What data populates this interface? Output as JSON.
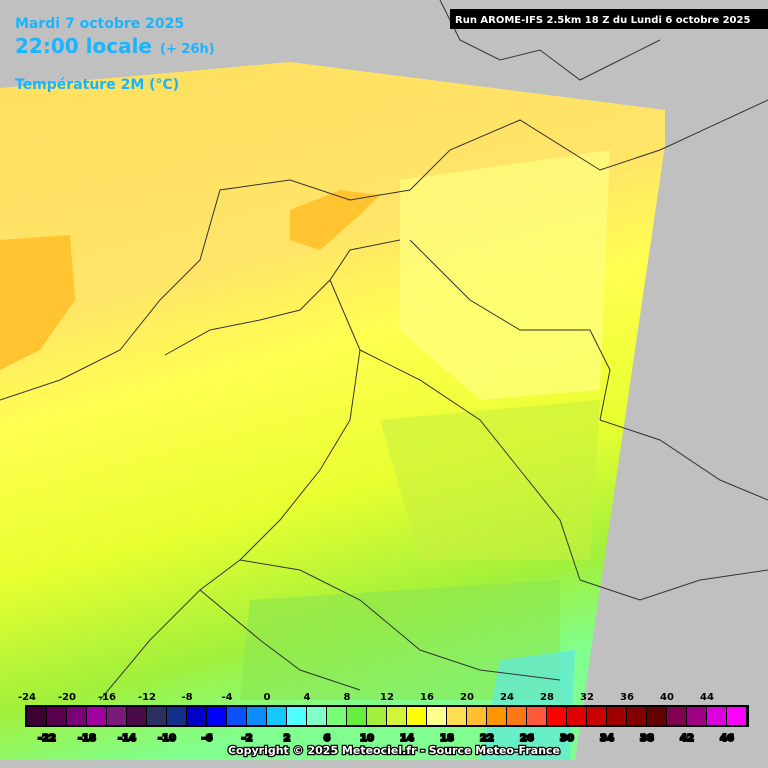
{
  "header": {
    "date": "Mardi 7 octobre 2025",
    "time": "22:00 locale",
    "lead": "(+ 26h)",
    "variable": "Température 2M (°C)",
    "run": "Run AROME-IFS 2.5km 18 Z du Lundi 6 octobre 2025"
  },
  "legend": {
    "values": [
      -24,
      -22,
      -20,
      -18,
      -16,
      -14,
      -12,
      -10,
      -8,
      -6,
      -4,
      -2,
      0,
      2,
      4,
      6,
      8,
      10,
      12,
      14,
      16,
      18,
      20,
      22,
      24,
      26,
      28,
      30,
      32,
      34,
      36,
      38,
      40,
      42,
      44,
      46
    ],
    "colors": [
      "#3c0032",
      "#5a0050",
      "#7a0078",
      "#a000a0",
      "#7a1a7a",
      "#4a0a4a",
      "#2a3060",
      "#12308a",
      "#0000c8",
      "#0000ff",
      "#0a50ff",
      "#0a8cff",
      "#14c8ff",
      "#50ffff",
      "#80ffc8",
      "#78ff78",
      "#64f03c",
      "#a0f03c",
      "#d2f53c",
      "#ffff00",
      "#ffff8c",
      "#ffdc50",
      "#ffbe32",
      "#ff9600",
      "#ff7814",
      "#ff5a3c",
      "#ff0000",
      "#e10000",
      "#c80000",
      "#a00000",
      "#820000",
      "#640000",
      "#820050",
      "#a00082",
      "#dc00dc",
      "#ff00ff"
    ]
  },
  "footer": {
    "copyright": "Copyright © 2025 Meteociel.fr - Source Meteo-France"
  }
}
